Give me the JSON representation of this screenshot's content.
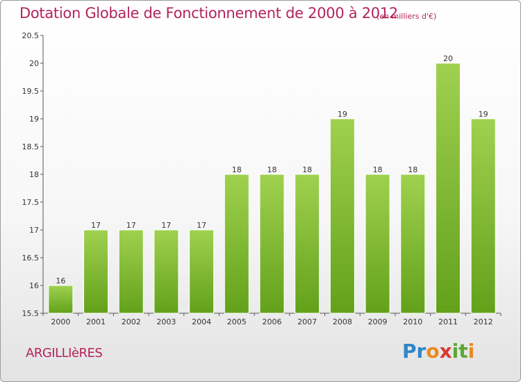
{
  "header": {
    "title": "Dotation Globale de Fonctionnement de 2000 à 2012",
    "subtitle": "(en milliers d'€)"
  },
  "footer": {
    "commune": "ARGILLIèRES",
    "logo_text": "Proxiti"
  },
  "colors": {
    "title": "#b3245b",
    "bar_top": "#9fd14f",
    "bar_bottom": "#63a11a"
  },
  "chart_data": {
    "type": "bar",
    "title": "Dotation Globale de Fonctionnement de 2000 à 2012",
    "subtitle": "(en milliers d'€)",
    "xlabel": "",
    "ylabel": "",
    "categories": [
      "2000",
      "2001",
      "2002",
      "2003",
      "2004",
      "2005",
      "2006",
      "2007",
      "2008",
      "2009",
      "2010",
      "2011",
      "2012"
    ],
    "values": [
      16,
      17,
      17,
      17,
      17,
      18,
      18,
      18,
      19,
      18,
      18,
      20,
      19
    ],
    "data_labels": [
      "16",
      "17",
      "17",
      "17",
      "17",
      "18",
      "18",
      "18",
      "19",
      "18",
      "18",
      "20",
      "19"
    ],
    "ylim": [
      15.5,
      20.5
    ],
    "yticks": [
      15.5,
      16,
      16.5,
      17,
      17.5,
      18,
      18.5,
      19,
      19.5,
      20,
      20.5
    ],
    "ytick_labels": [
      "15.5",
      "16",
      "16.5",
      "17",
      "17.5",
      "18",
      "18.5",
      "19",
      "19.5",
      "20",
      "20.5"
    ],
    "grid": false,
    "legend": "none"
  }
}
